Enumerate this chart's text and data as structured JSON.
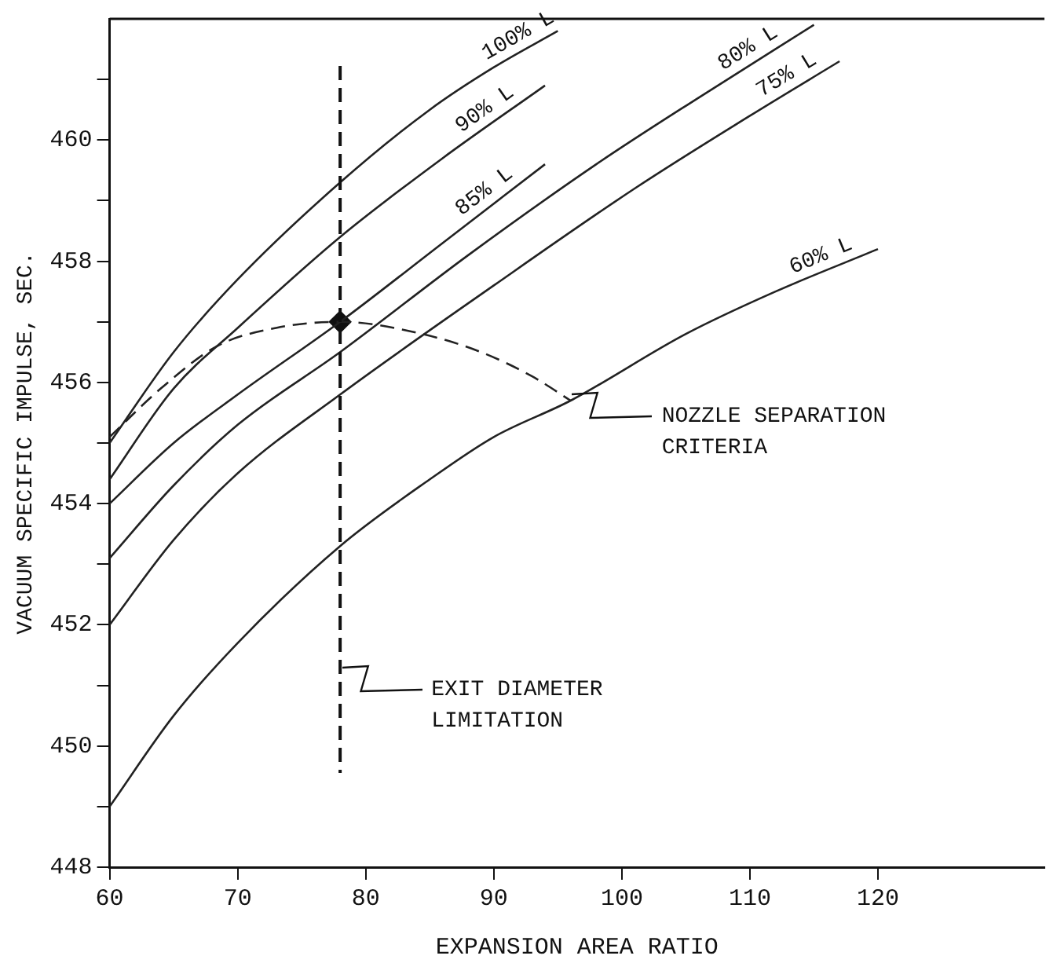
{
  "chart_data": {
    "type": "line",
    "xlabel": "EXPANSION AREA RATIO",
    "ylabel": "VACUUM SPECIFIC IMPULSE, SEC.",
    "xlim": [
      60,
      133
    ],
    "xticks": [
      60,
      70,
      80,
      90,
      100,
      110,
      120
    ],
    "ylim": [
      448,
      462
    ],
    "yticks": [
      448,
      {
        "value": 449,
        "label": null
      },
      450,
      {
        "value": 451,
        "label": null
      },
      452,
      {
        "value": 453,
        "label": null
      },
      454,
      {
        "value": 455,
        "label": null
      },
      456,
      {
        "value": 457,
        "label": null
      },
      458,
      {
        "value": 459,
        "label": null
      },
      460,
      {
        "value": 461,
        "label": null
      }
    ],
    "grid": false,
    "legend": false,
    "marker": "none",
    "line_style": "solid",
    "series": [
      {
        "name": "100% L",
        "color": "#222222",
        "x": [
          60,
          65,
          70,
          78,
          85,
          90,
          95
        ],
        "values": [
          455.0,
          456.5,
          457.7,
          459.3,
          460.5,
          461.2,
          461.8
        ]
      },
      {
        "name": "90% L",
        "color": "#222222",
        "x": [
          60,
          65,
          70,
          78,
          86,
          94
        ],
        "values": [
          454.4,
          455.9,
          456.9,
          458.4,
          459.7,
          460.9
        ]
      },
      {
        "name": "85% L",
        "color": "#222222",
        "x": [
          60,
          65,
          70,
          78,
          86,
          94
        ],
        "values": [
          454.0,
          455.0,
          455.8,
          457.0,
          458.3,
          459.6
        ]
      },
      {
        "name": "80% L",
        "color": "#222222",
        "x": [
          60,
          65,
          70,
          78,
          88,
          98,
          106,
          115
        ],
        "values": [
          453.1,
          454.3,
          455.3,
          456.5,
          458.1,
          459.6,
          460.7,
          461.9
        ]
      },
      {
        "name": "75% L",
        "color": "#222222",
        "x": [
          60,
          65,
          70,
          78,
          90,
          101,
          110,
          117
        ],
        "values": [
          452.0,
          453.4,
          454.5,
          455.8,
          457.6,
          459.2,
          460.4,
          461.3
        ]
      },
      {
        "name": "60% L",
        "color": "#222222",
        "x": [
          60,
          65,
          70,
          78,
          85,
          90,
          96,
          105,
          112,
          120
        ],
        "values": [
          449.0,
          450.5,
          451.7,
          453.3,
          454.4,
          455.1,
          455.7,
          456.8,
          457.5,
          458.2
        ]
      },
      {
        "color": "#222222",
        "line_style": "dashed",
        "x": [
          60,
          64,
          68.4,
          73,
          78,
          84.4,
          89,
          93,
          96
        ],
        "values": [
          455.1,
          455.9,
          456.6,
          456.9,
          457.0,
          456.8,
          456.5,
          456.1,
          455.7
        ]
      },
      {
        "type": "scatter",
        "marker": "diamond",
        "color": "#111111",
        "x": [
          78
        ],
        "values": [
          457.0
        ]
      }
    ],
    "ref_lines": [
      {
        "axis": "x",
        "value": 78,
        "line_style": "dashed",
        "color": "#111111"
      }
    ],
    "annotations": [
      {
        "text": "NOZZLE SEPARATION CRITERIA",
        "x": 96,
        "y": 455.7
      },
      {
        "text": "EXIT DIAMETER LIMITATION",
        "x": 78,
        "y": 451.2
      }
    ]
  }
}
